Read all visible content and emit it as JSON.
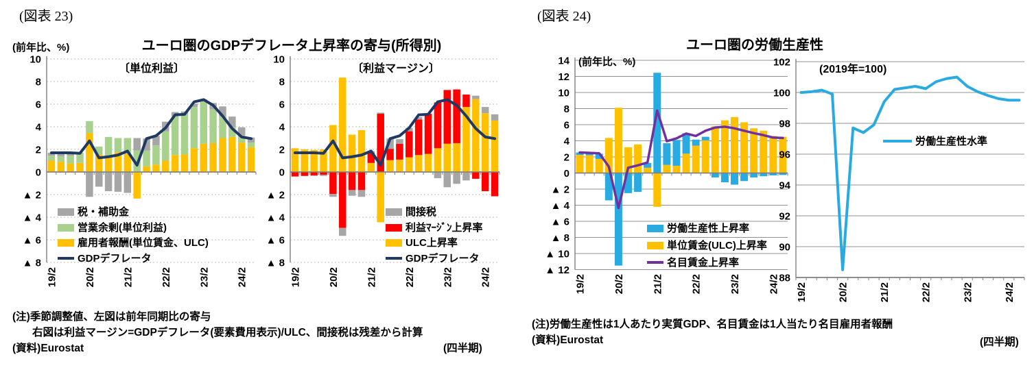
{
  "figure23": {
    "caption": "(図表 23)",
    "y_axis_note": "(前年比、%)",
    "title": "ユーロ圏のGDPデフレータ上昇率の寄与(所得別)",
    "notes": [
      "(注)季節調整値、左図は前年同期比の寄与",
      "右図は利益マージン=GDPデフレータ(要素費用表示)/ULC、間接税は残差から計算",
      "(資料)Eurostat"
    ],
    "period_note": "(四半期)"
  },
  "figure24": {
    "caption": "(図表 24)",
    "title": "ユーロ圏の労働生産性",
    "y_axis_note": "(前年比、%)",
    "index_note": "(2019年=100)",
    "notes": [
      "(注)労働生産性は1人あたり実質GDP、名目賃金は1人当たり名目雇用者報酬",
      "(資料)Eurostat"
    ],
    "period_note": "(四半期)"
  },
  "chart_data": [
    {
      "id": "fig23-unit-profit",
      "type": "bar",
      "title": "〔単位利益〕",
      "x": [
        "19/2",
        "19/3",
        "19/4",
        "20/1",
        "20/2",
        "20/3",
        "20/4",
        "21/1",
        "21/2",
        "21/3",
        "21/4",
        "22/1",
        "22/2",
        "22/3",
        "22/4",
        "23/1",
        "23/2",
        "23/3",
        "23/4",
        "24/1",
        "24/2",
        "24/3"
      ],
      "xtick_labels": [
        "19/2",
        "20/2",
        "21/2",
        "22/2",
        "23/2",
        "24/2"
      ],
      "xtick_idx": [
        0,
        4,
        8,
        12,
        16,
        20
      ],
      "ylim": [
        -8,
        10
      ],
      "ytick_vals": [
        10,
        8,
        6,
        4,
        2,
        0,
        -2,
        -4,
        -6,
        -8
      ],
      "ytick_labels": [
        "10",
        "8",
        "6",
        "4",
        "2",
        "0",
        "▲ 2",
        "▲ 4",
        "▲ 6",
        "▲ 8"
      ],
      "grid": "dash",
      "stacked": true,
      "legend_position": "inside-bottom-left",
      "bars": [
        {
          "name": "雇用者報酬(単位賃金、ULC)",
          "color": "#FFC000",
          "values": [
            1.0,
            0.9,
            0.75,
            0.8,
            3.45,
            1.55,
            1.35,
            1.75,
            1.6,
            -2.35,
            0.5,
            0.65,
            1.0,
            1.5,
            1.55,
            2.1,
            2.5,
            2.55,
            3.0,
            3.1,
            2.6,
            2.2
          ]
        },
        {
          "name": "営業余剰(単位利益)",
          "color": "#A9D18E",
          "values": [
            0.45,
            0.5,
            0.7,
            0.85,
            1.05,
            0.7,
            1.75,
            1.25,
            1.4,
            1.9,
            1.4,
            1.7,
            2.6,
            3.45,
            3.6,
            3.65,
            3.75,
            3.0,
            1.9,
            0.85,
            0.65,
            0.4
          ]
        },
        {
          "name": "税・補助金",
          "color": "#A6A6A6",
          "values": [
            0.25,
            0.3,
            0.25,
            0.05,
            -2.2,
            -1.3,
            -1.7,
            -1.75,
            -1.85,
            1.1,
            1.05,
            0.85,
            0.85,
            0.35,
            0.2,
            0.3,
            0.15,
            0.55,
            0.9,
            0.95,
            0.7,
            0.45
          ]
        }
      ],
      "lines": [
        {
          "name": "GDPデフレータ",
          "color": "#203864",
          "width": 4,
          "values": [
            1.7,
            1.7,
            1.7,
            1.65,
            2.75,
            1.25,
            1.35,
            1.5,
            1.85,
            0.6,
            2.95,
            3.2,
            3.9,
            5.05,
            5.1,
            6.2,
            6.4,
            5.9,
            4.95,
            3.85,
            3.1,
            2.95
          ]
        }
      ]
    },
    {
      "id": "fig23-profit-margin",
      "type": "bar",
      "title": "〔利益マージン〕",
      "x": [
        "19/2",
        "19/3",
        "19/4",
        "20/1",
        "20/2",
        "20/3",
        "20/4",
        "21/1",
        "21/2",
        "21/3",
        "21/4",
        "22/1",
        "22/2",
        "22/3",
        "22/4",
        "23/1",
        "23/2",
        "23/3",
        "23/4",
        "24/1",
        "24/2",
        "24/3"
      ],
      "xtick_labels": [
        "19/2",
        "20/2",
        "21/2",
        "22/2",
        "23/2",
        "24/2"
      ],
      "xtick_idx": [
        0,
        4,
        8,
        12,
        16,
        20
      ],
      "ylim": [
        -8,
        10
      ],
      "ytick_vals": [
        10,
        8,
        6,
        4,
        2,
        0,
        -2,
        -4,
        -6,
        -8
      ],
      "ytick_labels": [
        "10",
        "8",
        "6",
        "4",
        "2",
        "0",
        "▲ 2",
        "▲ 4",
        "▲ 6",
        "▲ 8"
      ],
      "grid": "dash",
      "stacked": true,
      "legend_position": "inside-bottom-right",
      "bars": [
        {
          "name": "ULC上昇率",
          "color": "#FFC000",
          "values": [
            2.1,
            2.0,
            1.95,
            2.0,
            4.15,
            8.35,
            3.3,
            3.7,
            0.8,
            -4.45,
            1.05,
            1.1,
            1.3,
            1.5,
            1.6,
            2.1,
            2.5,
            2.55,
            5.75,
            6.45,
            5.2,
            4.55
          ]
        },
        {
          "name": "利益ﾏｰｼﾞﾝ上昇率",
          "color": "#FF0000",
          "values": [
            -0.4,
            -0.35,
            -0.3,
            -0.25,
            -1.95,
            -4.95,
            -1.6,
            -1.6,
            0.9,
            5.15,
            1.0,
            1.4,
            2.3,
            3.15,
            3.55,
            4.05,
            4.75,
            4.75,
            1.1,
            -0.6,
            -1.7,
            -2.15
          ]
        },
        {
          "name": "間接税",
          "color": "#A6A6A6",
          "values": [
            0,
            0,
            -0.05,
            -0.1,
            -0.25,
            -0.7,
            -0.5,
            -0.6,
            0.15,
            0.1,
            0.9,
            0.4,
            0.3,
            0.2,
            0,
            -0.55,
            -1.35,
            -1.05,
            -0.75,
            0.3,
            0.55,
            0.55
          ]
        }
      ],
      "lines": [
        {
          "name": "GDPデフレータ",
          "color": "#203864",
          "width": 4,
          "values": [
            1.7,
            1.7,
            1.7,
            1.65,
            2.75,
            1.25,
            1.35,
            1.5,
            1.85,
            0.6,
            2.95,
            3.2,
            3.9,
            5.05,
            5.1,
            6.2,
            6.4,
            5.9,
            4.95,
            3.85,
            3.1,
            2.95
          ]
        }
      ]
    },
    {
      "id": "fig24-productivity-growth",
      "type": "bar",
      "title": "",
      "x": [
        "19/2",
        "19/3",
        "19/4",
        "20/1",
        "20/2",
        "20/3",
        "20/4",
        "21/1",
        "21/2",
        "21/3",
        "21/4",
        "22/1",
        "22/2",
        "22/3",
        "22/4",
        "23/1",
        "23/2",
        "23/3",
        "23/4",
        "24/1",
        "24/2",
        "24/3"
      ],
      "xtick_labels": [
        "19/2",
        "20/2",
        "21/2",
        "22/2",
        "23/2",
        "24/2"
      ],
      "xtick_idx": [
        0,
        4,
        8,
        12,
        16,
        20
      ],
      "ylim": [
        -12,
        14
      ],
      "ytick_vals": [
        14,
        12,
        10,
        8,
        6,
        4,
        2,
        0,
        -2,
        -4,
        -6,
        -8,
        -10,
        -12
      ],
      "ytick_labels": [
        "14",
        "12",
        "10",
        "8",
        "6",
        "4",
        "2",
        "0",
        "▲ 2",
        "▲ 4",
        "▲ 6",
        "▲ 8",
        "▲ 10",
        "▲ 12"
      ],
      "grid": "solid",
      "stacked": true,
      "legend_position": "inside-bottom-right",
      "bars": [
        {
          "name": "単位賃金(ULC)上昇率",
          "color": "#FFC000",
          "values": [
            2.25,
            2.2,
            1.75,
            4.35,
            8.1,
            3.2,
            3.55,
            0.65,
            -4.2,
            1.0,
            0.9,
            2.4,
            3.4,
            4.05,
            5.8,
            6.55,
            6.95,
            6.3,
            5.55,
            5.25,
            4.6,
            4.5
          ]
        },
        {
          "name": "労働生産性上昇率",
          "color": "#29ABE2",
          "values": [
            0.3,
            0.3,
            0.65,
            -3.4,
            -11.5,
            -2.5,
            -2.35,
            0.6,
            12.45,
            2.7,
            3.2,
            2.55,
            0.75,
            0.45,
            -0.55,
            -1.15,
            -1.45,
            -1.0,
            -0.55,
            -0.4,
            -0.3,
            -0.25
          ]
        }
      ],
      "lines": [
        {
          "name": "名目賃金上昇率",
          "color": "#7030A0",
          "width": 3.5,
          "values": [
            2.55,
            2.5,
            2.45,
            0.8,
            -4.35,
            0.65,
            0.95,
            1.3,
            7.75,
            3.95,
            4.3,
            4.9,
            4.6,
            5.25,
            5.65,
            5.75,
            5.55,
            5.25,
            4.95,
            4.7,
            4.4,
            4.35
          ]
        }
      ]
    },
    {
      "id": "fig24-productivity-level",
      "type": "line",
      "title": "",
      "x": [
        "19/2",
        "19/3",
        "19/4",
        "20/1",
        "20/2",
        "20/3",
        "20/4",
        "21/1",
        "21/2",
        "21/3",
        "21/4",
        "22/1",
        "22/2",
        "22/3",
        "22/4",
        "23/1",
        "23/2",
        "23/3",
        "23/4",
        "24/1",
        "24/2",
        "24/3"
      ],
      "xtick_labels": [
        "19/2",
        "20/2",
        "21/2",
        "22/2",
        "23/2",
        "24/2"
      ],
      "xtick_idx": [
        0,
        4,
        8,
        12,
        16,
        20
      ],
      "ylim": [
        88,
        102
      ],
      "ytick_vals": [
        102,
        100,
        98,
        96,
        94,
        92,
        90,
        88
      ],
      "ytick_labels": [
        "102",
        "100",
        "98",
        "96",
        "94",
        "92",
        "90",
        "88"
      ],
      "grid": "solid",
      "legend_position": "inside-middle",
      "lines": [
        {
          "name": "労働生産性水準",
          "color": "#29ABE2",
          "width": 4,
          "values": [
            100.0,
            100.05,
            100.15,
            99.9,
            88.5,
            97.7,
            97.4,
            97.9,
            99.4,
            100.2,
            100.3,
            100.4,
            100.25,
            100.7,
            100.9,
            101.0,
            100.4,
            100.05,
            99.8,
            99.6,
            99.5,
            99.5
          ]
        }
      ]
    }
  ]
}
